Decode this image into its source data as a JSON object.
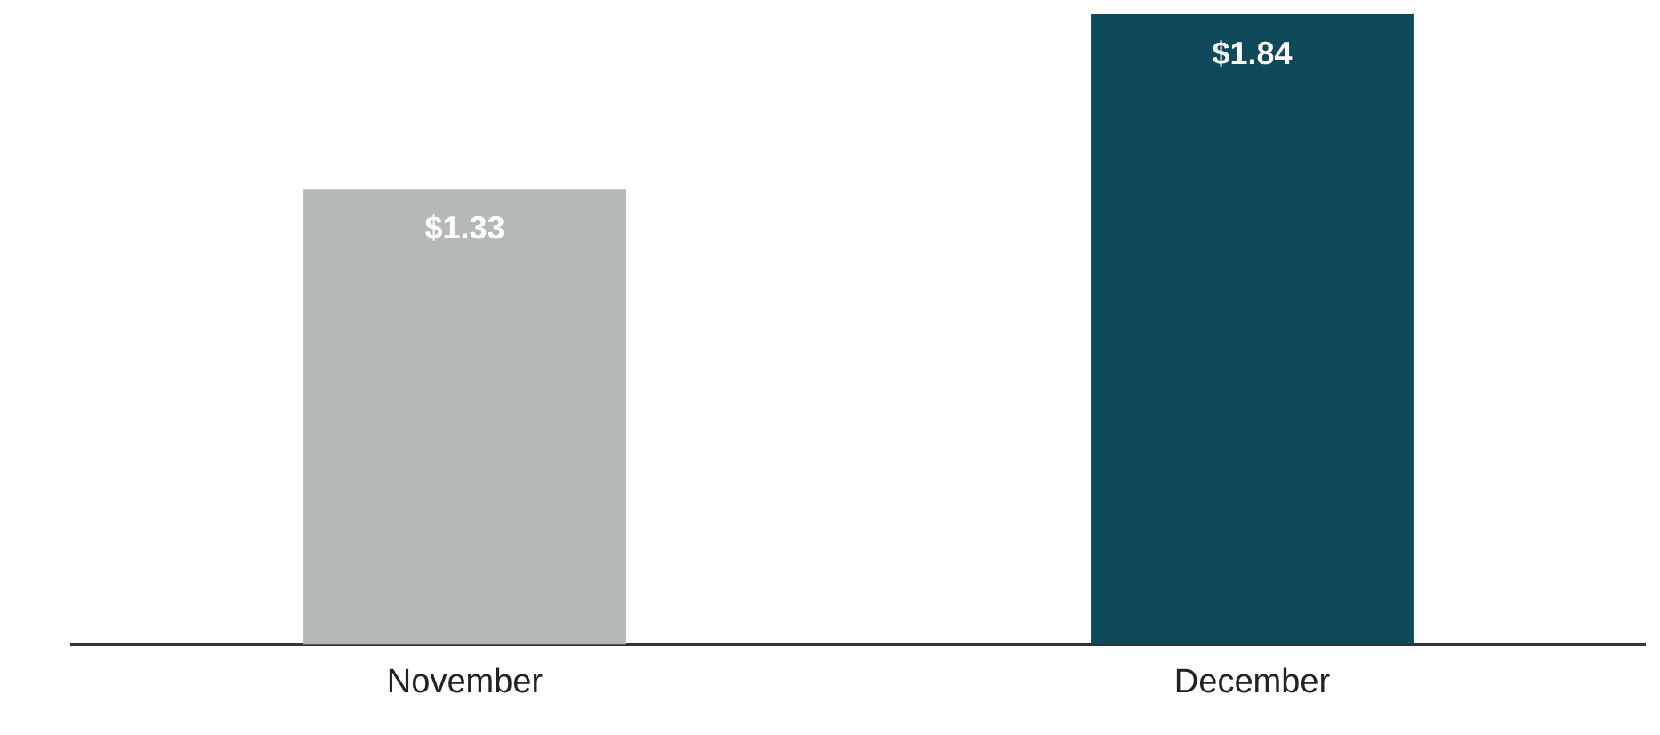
{
  "chart_data": {
    "type": "bar",
    "categories": [
      "November",
      "December"
    ],
    "values": [
      1.33,
      1.84
    ],
    "colors": [
      "#b5b9b6",
      "#0f4a5a"
    ],
    "value_labels": [
      "$1.33",
      "$1.84"
    ],
    "grid": false,
    "legend": false
  }
}
